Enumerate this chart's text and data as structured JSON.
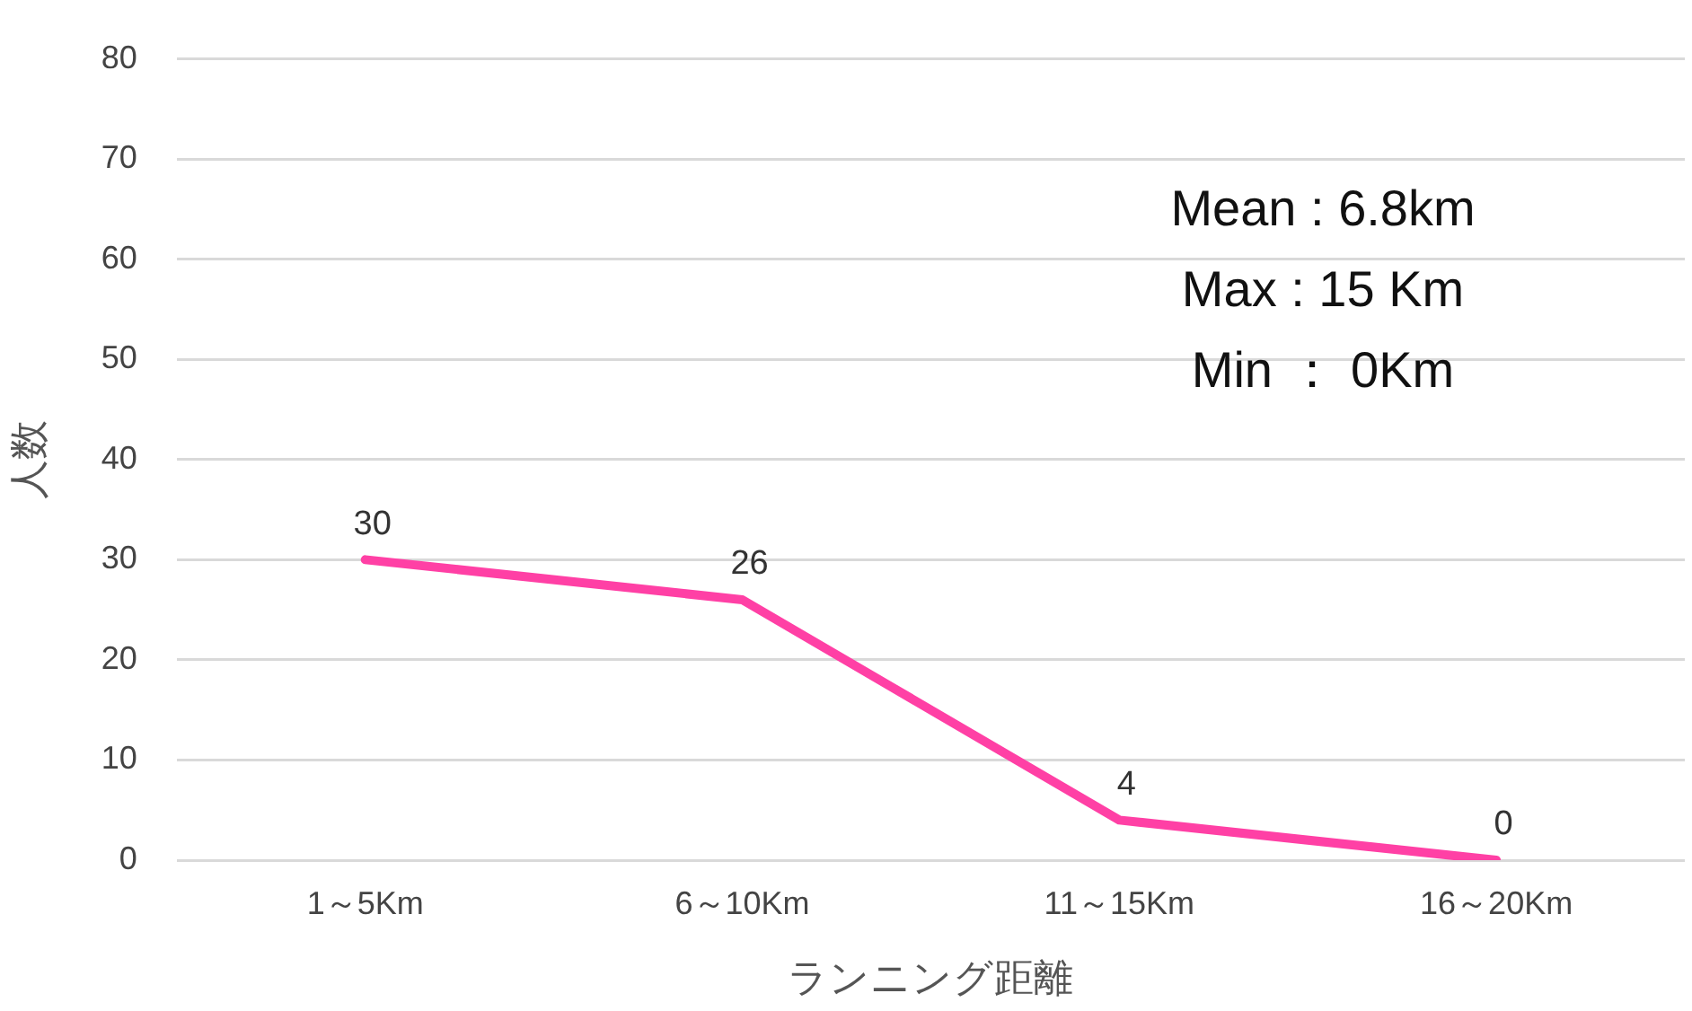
{
  "chart_data": {
    "type": "line",
    "categories": [
      "1～5Km",
      "6～10Km",
      "11～15Km",
      "16～20Km"
    ],
    "series": [
      {
        "color": "#ff40a5",
        "values": [
          30,
          26,
          4,
          0
        ]
      }
    ],
    "ylim": [
      0,
      80
    ],
    "yticks": [
      0,
      10,
      20,
      30,
      40,
      50,
      60,
      70,
      80
    ],
    "grid": "y",
    "marker": "none",
    "line_style": "solid",
    "data_labels": true,
    "xlabel": "ランニング距離",
    "ylabel": "人数",
    "annotations": [
      "Mean : 6.8km",
      "Max : 15 Km",
      "Min ： 0Km"
    ]
  }
}
